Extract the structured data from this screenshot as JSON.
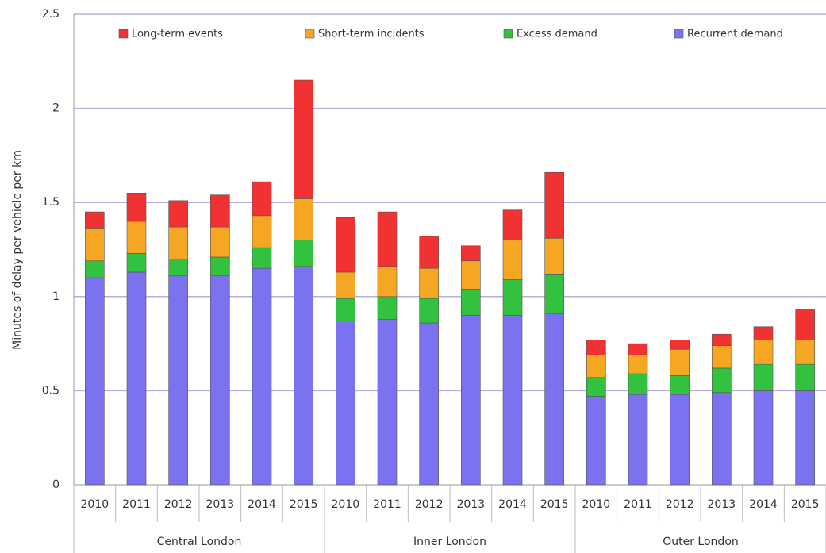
{
  "chart_data": {
    "type": "stacked_bar",
    "y_label": "Minutes of delay per vehicle per km",
    "groups": [
      {
        "name": "Central London",
        "categories": [
          "2010",
          "2011",
          "2012",
          "2013",
          "2014",
          "2015"
        ]
      },
      {
        "name": "Inner London",
        "categories": [
          "2010",
          "2011",
          "2012",
          "2013",
          "2014",
          "2015"
        ]
      },
      {
        "name": "Outer London",
        "categories": [
          "2010",
          "2011",
          "2012",
          "2013",
          "2014",
          "2015"
        ]
      }
    ],
    "series": [
      {
        "name": "Long-term events",
        "color": "#f03232",
        "values": [
          0.09,
          0.15,
          0.14,
          0.17,
          0.18,
          0.63,
          0.29,
          0.29,
          0.17,
          0.08,
          0.16,
          0.35,
          0.08,
          0.06,
          0.05,
          0.06,
          0.07,
          0.16
        ]
      },
      {
        "name": "Short-term incidents",
        "color": "#f5a623",
        "values": [
          0.17,
          0.17,
          0.17,
          0.16,
          0.17,
          0.22,
          0.14,
          0.16,
          0.16,
          0.15,
          0.21,
          0.19,
          0.12,
          0.1,
          0.14,
          0.12,
          0.13,
          0.13
        ]
      },
      {
        "name": "Excess demand",
        "color": "#33c23f",
        "values": [
          0.09,
          0.1,
          0.09,
          0.1,
          0.11,
          0.14,
          0.12,
          0.12,
          0.13,
          0.14,
          0.19,
          0.21,
          0.1,
          0.11,
          0.1,
          0.13,
          0.14,
          0.14
        ]
      },
      {
        "name": "Recurrent demand",
        "color": "#7b72f0",
        "values": [
          1.1,
          1.13,
          1.11,
          1.11,
          1.15,
          1.16,
          0.87,
          0.88,
          0.86,
          0.9,
          0.9,
          0.91,
          0.47,
          0.48,
          0.48,
          0.49,
          0.5,
          0.5
        ]
      }
    ],
    "stack_order": "reverse",
    "ylim": [
      0,
      2.5
    ],
    "yticks": [
      0,
      0.5,
      1,
      1.5,
      2,
      2.5
    ],
    "grid": true,
    "legend": "top"
  }
}
